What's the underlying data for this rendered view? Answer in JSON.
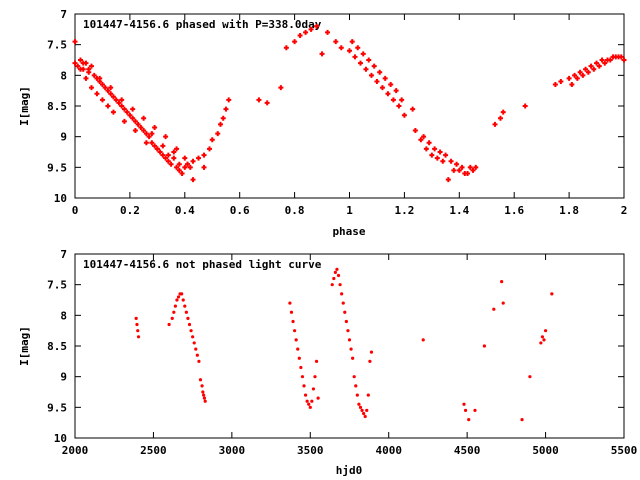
{
  "chart_data": [
    {
      "type": "scatter",
      "title": "101447-4156.6 phased with P=338.0day",
      "xlabel": "phase",
      "ylabel": "I[mag]",
      "xlim": [
        0,
        2
      ],
      "ylim": [
        7,
        10
      ],
      "y_inverted": true,
      "grid": false,
      "marker": "plus",
      "color": "#ff0000",
      "xticks": [
        0,
        0.2,
        0.4,
        0.6,
        0.8,
        1,
        1.2,
        1.4,
        1.6,
        1.8,
        2
      ],
      "xtick_labels": [
        "0",
        "0.2",
        "0.4",
        "0.6",
        "0.8",
        "1",
        "1.2",
        "1.4",
        "1.6",
        "1.8",
        "2"
      ],
      "yticks": [
        7,
        7.5,
        8,
        8.5,
        9,
        9.5,
        10
      ],
      "ytick_labels": [
        "7",
        "7.5",
        "8",
        "8.5",
        "9",
        "9.5",
        "10"
      ],
      "x": [
        0.0,
        0.01,
        0.02,
        0.03,
        0.04,
        0.05,
        0.06,
        0.07,
        0.08,
        0.09,
        0.1,
        0.11,
        0.12,
        0.13,
        0.14,
        0.15,
        0.16,
        0.17,
        0.18,
        0.19,
        0.2,
        0.21,
        0.22,
        0.23,
        0.24,
        0.25,
        0.26,
        0.27,
        0.28,
        0.29,
        0.3,
        0.31,
        0.32,
        0.33,
        0.34,
        0.35,
        0.36,
        0.37,
        0.38,
        0.39,
        0.4,
        0.41,
        0.42,
        0.43,
        0.45,
        0.47,
        0.49,
        0.5,
        0.52,
        0.53,
        0.54,
        0.55,
        0.56,
        0.67,
        0.7,
        0.75,
        0.77,
        0.8,
        0.82,
        0.84,
        0.86,
        0.88,
        0.9,
        0.92,
        0.95,
        0.97,
        1.0,
        1.02,
        1.04,
        1.06,
        1.08,
        1.1,
        1.12,
        1.14,
        1.16,
        1.18,
        1.2,
        1.24,
        1.26,
        1.28,
        1.3,
        1.32,
        1.34,
        1.36,
        1.38,
        1.4,
        1.41,
        1.42,
        1.44,
        1.46,
        1.53,
        1.55,
        1.56,
        1.64,
        1.75,
        1.77,
        1.8,
        1.82,
        1.84,
        1.86,
        1.88,
        1.9,
        1.92,
        1.94,
        1.96,
        1.98,
        2.0,
        0.02,
        0.04,
        0.06,
        0.08,
        0.1,
        0.12,
        0.14,
        0.18,
        0.22,
        0.26,
        0.3,
        0.34,
        0.38,
        0.0,
        0.03,
        0.05,
        0.09,
        0.13,
        0.17,
        0.21,
        0.25,
        0.29,
        0.33,
        0.37,
        0.41,
        0.43,
        0.47,
        1.01,
        1.03,
        1.05,
        1.07,
        1.09,
        1.11,
        1.13,
        1.15,
        1.17,
        1.19,
        1.23,
        1.27,
        1.29,
        1.31,
        1.33,
        1.35,
        1.37,
        1.39,
        1.43,
        1.45,
        1.81,
        1.83,
        1.85,
        1.87,
        1.89,
        1.91,
        1.93,
        1.95,
        1.97,
        1.99,
        0.28,
        0.32,
        0.36,
        0.4
      ],
      "y": [
        7.8,
        7.85,
        7.75,
        7.9,
        7.8,
        7.95,
        7.85,
        8.0,
        8.05,
        8.1,
        8.15,
        8.2,
        8.25,
        8.3,
        8.35,
        8.4,
        8.45,
        8.5,
        8.55,
        8.6,
        8.65,
        8.7,
        8.75,
        8.8,
        8.85,
        8.9,
        8.95,
        9.0,
        9.1,
        9.15,
        9.2,
        9.25,
        9.3,
        9.35,
        9.4,
        9.45,
        9.35,
        9.5,
        9.55,
        9.6,
        9.5,
        9.45,
        9.5,
        9.4,
        9.35,
        9.3,
        9.2,
        9.05,
        8.95,
        8.8,
        8.7,
        8.55,
        8.4,
        8.4,
        8.45,
        8.2,
        7.55,
        7.45,
        7.35,
        7.3,
        7.25,
        7.2,
        7.65,
        7.3,
        7.45,
        7.55,
        7.6,
        7.7,
        7.8,
        7.9,
        8.0,
        8.1,
        8.2,
        8.3,
        8.4,
        8.5,
        8.65,
        8.9,
        9.05,
        9.2,
        9.3,
        9.35,
        9.4,
        9.7,
        9.55,
        9.55,
        9.5,
        9.6,
        9.5,
        9.5,
        8.8,
        8.7,
        8.6,
        8.5,
        8.15,
        8.1,
        8.05,
        8.0,
        7.95,
        7.9,
        7.85,
        7.8,
        7.75,
        7.75,
        7.7,
        7.7,
        7.75,
        7.9,
        8.05,
        8.2,
        8.3,
        8.4,
        8.5,
        8.6,
        8.75,
        8.9,
        9.1,
        9.2,
        9.3,
        9.45,
        7.45,
        7.8,
        7.9,
        8.05,
        8.2,
        8.4,
        8.55,
        8.7,
        8.85,
        9.0,
        9.2,
        9.45,
        9.7,
        9.5,
        7.45,
        7.55,
        7.65,
        7.75,
        7.85,
        7.95,
        8.05,
        8.15,
        8.25,
        8.4,
        8.55,
        9.0,
        9.1,
        9.2,
        9.25,
        9.3,
        9.4,
        9.45,
        9.6,
        9.55,
        8.15,
        8.05,
        8.0,
        7.95,
        7.9,
        7.85,
        7.8,
        7.75,
        7.7,
        7.7,
        8.95,
        9.15,
        9.25,
        9.35
      ]
    },
    {
      "type": "scatter",
      "title": "101447-4156.6 not phased light curve",
      "xlabel": "hjd0",
      "ylabel": "I[mag]",
      "xlim": [
        2000,
        5500
      ],
      "ylim": [
        7,
        10
      ],
      "y_inverted": true,
      "grid": false,
      "marker": "dot",
      "color": "#ff0000",
      "xticks": [
        2000,
        2500,
        3000,
        3500,
        4000,
        4500,
        5000,
        5500
      ],
      "xtick_labels": [
        "2000",
        "2500",
        "3000",
        "3500",
        "4000",
        "4500",
        "5000",
        "5500"
      ],
      "yticks": [
        7,
        7.5,
        8,
        8.5,
        9,
        9.5,
        10
      ],
      "ytick_labels": [
        "7",
        "7.5",
        "8",
        "8.5",
        "9",
        "9.5",
        "10"
      ],
      "x": [
        2390,
        2395,
        2400,
        2405,
        2600,
        2620,
        2630,
        2640,
        2650,
        2660,
        2670,
        2680,
        2690,
        2700,
        2710,
        2720,
        2730,
        2740,
        2750,
        2760,
        2770,
        2780,
        2790,
        2800,
        2810,
        2815,
        2820,
        2825,
        2830,
        3370,
        3380,
        3390,
        3400,
        3410,
        3420,
        3430,
        3440,
        3450,
        3460,
        3470,
        3480,
        3490,
        3500,
        3510,
        3520,
        3530,
        3540,
        3550,
        3640,
        3650,
        3660,
        3670,
        3680,
        3690,
        3700,
        3710,
        3720,
        3730,
        3740,
        3750,
        3760,
        3770,
        3780,
        3790,
        3800,
        3810,
        3820,
        3830,
        3840,
        3850,
        3860,
        3870,
        3880,
        3890,
        4220,
        4480,
        4490,
        4510,
        4550,
        4610,
        4670,
        4720,
        4730,
        4850,
        4900,
        4970,
        4980,
        4990,
        5000,
        5040
      ],
      "y": [
        8.05,
        8.15,
        8.25,
        8.35,
        8.15,
        8.05,
        7.95,
        7.85,
        7.75,
        7.7,
        7.65,
        7.65,
        7.75,
        7.85,
        7.95,
        8.05,
        8.15,
        8.25,
        8.35,
        8.45,
        8.55,
        8.65,
        8.75,
        9.05,
        9.15,
        9.25,
        9.3,
        9.35,
        9.4,
        7.8,
        7.95,
        8.1,
        8.25,
        8.4,
        8.55,
        8.7,
        8.85,
        9.0,
        9.15,
        9.3,
        9.4,
        9.45,
        9.5,
        9.4,
        9.2,
        9.0,
        8.75,
        9.35,
        7.5,
        7.4,
        7.3,
        7.25,
        7.35,
        7.5,
        7.65,
        7.8,
        7.95,
        8.1,
        8.25,
        8.4,
        8.55,
        8.7,
        9.0,
        9.15,
        9.3,
        9.45,
        9.5,
        9.55,
        9.6,
        9.65,
        9.55,
        9.3,
        8.75,
        8.6,
        8.4,
        9.45,
        9.55,
        9.7,
        9.55,
        8.5,
        7.9,
        7.45,
        7.8,
        9.7,
        9.0,
        8.45,
        8.35,
        8.4,
        8.25,
        7.65
      ]
    }
  ]
}
